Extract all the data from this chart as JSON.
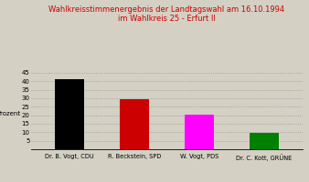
{
  "title_line1": "Wahlkreisstimmenergebnis der Landtagswahl am 16.10.1994",
  "title_line2": "im Wahlkreis 25 - Erfurt II",
  "title_color": "#cc0000",
  "ylabel": "Prozent",
  "categories": [
    "Dr. B. Vogt, CDU",
    "R. Beckstein, SPD",
    "W. Vogt, PDS",
    "Dr. C. Kott, GRÜNE"
  ],
  "values": [
    41.0,
    29.5,
    20.3,
    9.5
  ],
  "bar_colors": [
    "#000000",
    "#cc0000",
    "#ff00ff",
    "#008000"
  ],
  "ylim": [
    0,
    45
  ],
  "yticks": [
    5,
    10,
    15,
    20,
    25,
    30,
    35,
    40,
    45
  ],
  "background_color": "#d4d0c4",
  "grid_color": "#999999",
  "title_fontsize": 6.0,
  "label_fontsize": 4.8,
  "ylabel_fontsize": 5.0,
  "ytick_fontsize": 5.0,
  "bar_width": 0.45
}
